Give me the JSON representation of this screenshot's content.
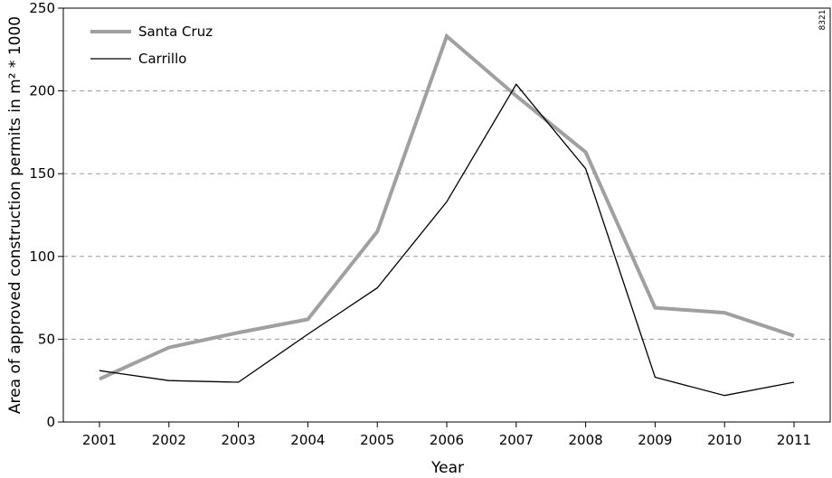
{
  "figure_id": "8321",
  "chart_data": {
    "type": "line",
    "title": "",
    "xlabel": "Year",
    "ylabel": "Area of approved construction permits in m² * 1000",
    "categories": [
      "2001",
      "2002",
      "2003",
      "2004",
      "2005",
      "2006",
      "2007",
      "2008",
      "2009",
      "2010",
      "2011"
    ],
    "ylim": [
      0,
      250
    ],
    "yticks": [
      0,
      50,
      100,
      150,
      200,
      250
    ],
    "grid": "horizontal dashed at 50, 100, 150, 200",
    "legend_position": "top-left",
    "series": [
      {
        "name": "Santa Cruz",
        "color": "#a0a0a0",
        "values": [
          26,
          45,
          54,
          62,
          115,
          233,
          197,
          163,
          69,
          66,
          52
        ]
      },
      {
        "name": "Carrillo",
        "color": "#000000",
        "values": [
          31,
          25,
          24,
          53,
          81,
          133,
          204,
          153,
          27,
          16,
          24
        ]
      }
    ]
  }
}
